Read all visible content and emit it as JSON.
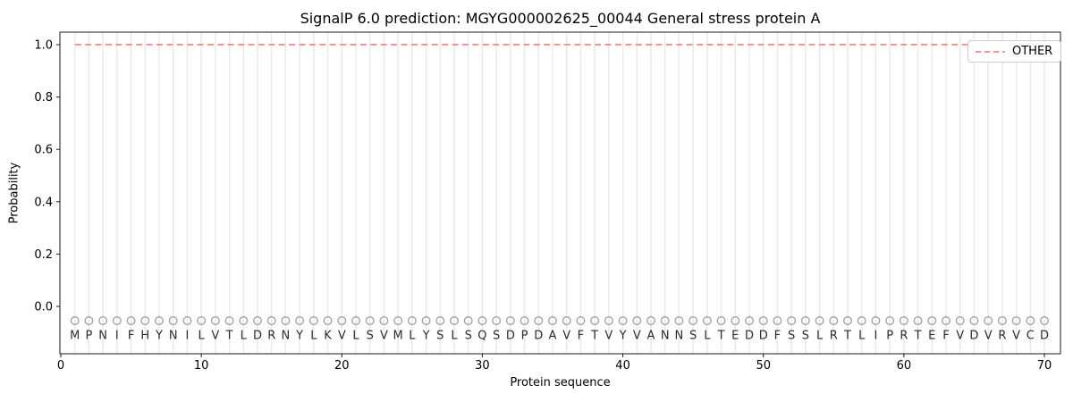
{
  "chart_data": {
    "type": "line",
    "title": "SignalP 6.0 prediction: MGYG000002625_00044 General stress protein A",
    "xlabel": "Protein sequence",
    "ylabel": "Probability",
    "x_ticks": [
      0,
      10,
      20,
      30,
      40,
      50,
      60,
      70
    ],
    "y_ticks": [
      "0.0",
      "0.2",
      "0.4",
      "0.6",
      "0.8",
      "1.0"
    ],
    "xlim": [
      0,
      71.2
    ],
    "ylim": [
      -0.18,
      1.05
    ],
    "grid": {
      "vertical_per_residue": true,
      "color": "#eaeaea"
    },
    "sequence": "MPNIFHYNILVTLDRNYLKVLSVMLYSLSQSDPDAVFTVYVANNSLTEDDFSSLRTLIPRTEFVDVRVCD",
    "sequence_length": 70,
    "series": [
      {
        "name": "OTHER",
        "style": "dashed",
        "color": "#f88585",
        "x": [
          1,
          70
        ],
        "y": [
          1.0,
          1.0
        ]
      }
    ],
    "residue_markers": {
      "shape": "open-circle",
      "color": "#9e9e9e",
      "y_value": -0.05
    },
    "legend": {
      "position": "upper-right",
      "entries": [
        {
          "label": "OTHER",
          "color": "#f88585",
          "dash": true
        }
      ]
    },
    "colors": {
      "axis": "#1a1a1a",
      "tick_text": "#000000",
      "sequence_letters": "#2b2b2b",
      "background": "#ffffff"
    }
  }
}
